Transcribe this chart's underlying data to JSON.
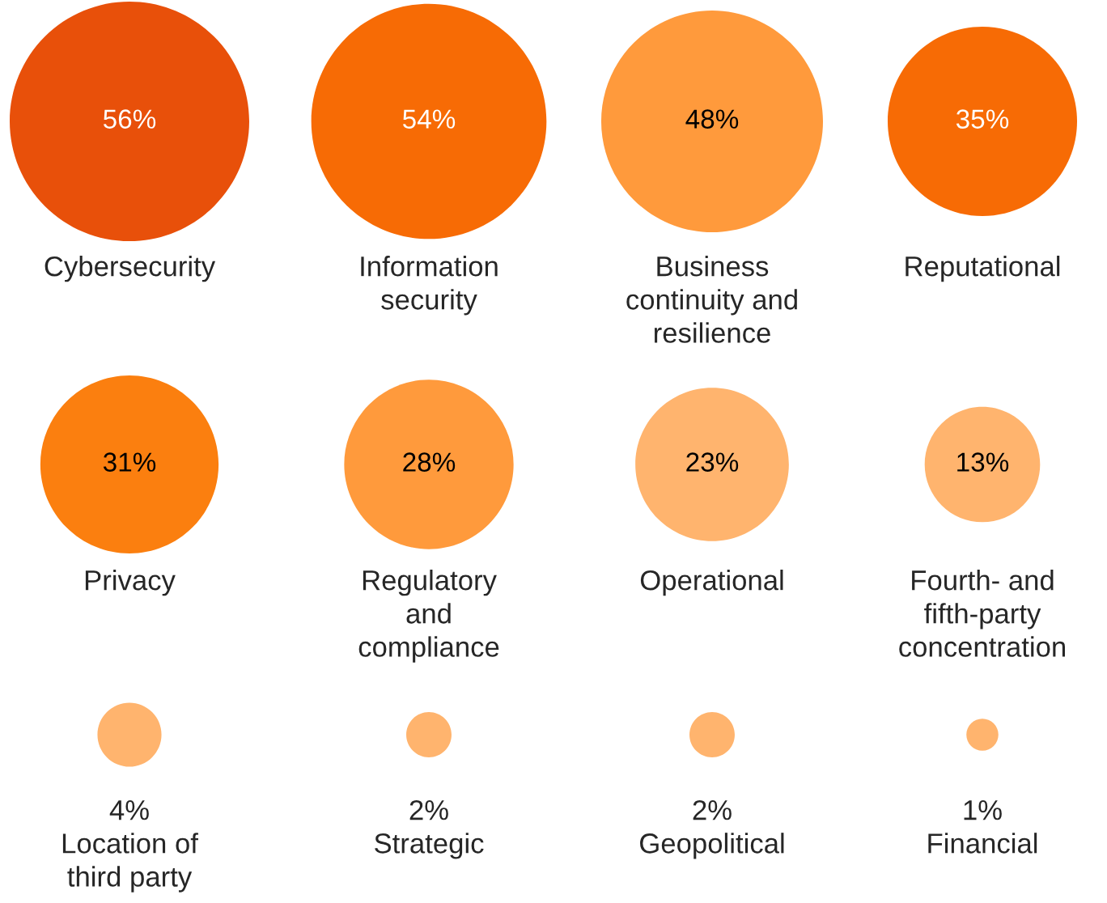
{
  "chart_data": {
    "type": "other",
    "categories": [
      "Cybersecurity",
      "Information\nsecurity",
      "Business\ncontinuity and\nresilience",
      "Reputational",
      "Privacy",
      "Regulatory\nand\ncompliance",
      "Operational",
      "Fourth- and\nfifth-party\nconcentration",
      "Location of\nthird party",
      "Strategic",
      "Geopolitical",
      "Financial"
    ],
    "values": [
      56,
      54,
      48,
      35,
      31,
      28,
      23,
      13,
      4,
      2,
      2,
      1
    ],
    "value_labels": [
      "56%",
      "54%",
      "48%",
      "35%",
      "31%",
      "28%",
      "23%",
      "13%",
      "4%",
      "2%",
      "2%",
      "1%"
    ],
    "colors": [
      "#e8500a",
      "#f76b05",
      "#ff9a3c",
      "#f76b05",
      "#fb7f0f",
      "#ff9a3c",
      "#ffb46e",
      "#ffb46e",
      "#ffb46e",
      "#ffb46e",
      "#ffb46e",
      "#ffb46e"
    ]
  }
}
